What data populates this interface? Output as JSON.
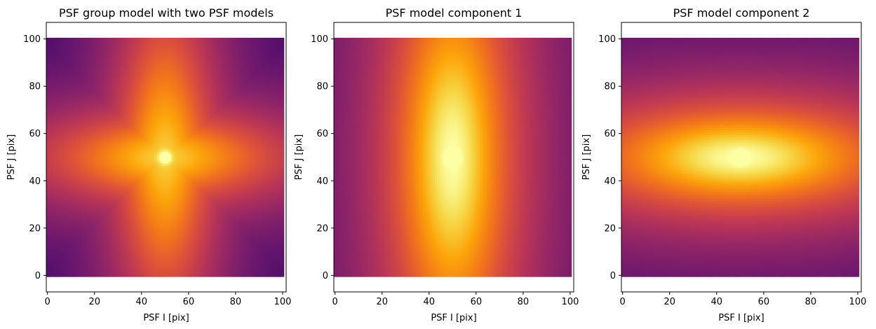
{
  "chart_data": [
    {
      "type": "heatmap",
      "title": "PSF group model with two PSF models",
      "xlabel": "PSF I [pix]",
      "ylabel": "PSF J [pix]",
      "xlim": [
        -0.5,
        101.5
      ],
      "ylim": [
        -7,
        107
      ],
      "image_extent": {
        "x": [
          -0.5,
          100.5
        ],
        "y": [
          -0.5,
          100.5
        ]
      },
      "xticks": [
        0,
        20,
        40,
        60,
        80,
        100
      ],
      "yticks": [
        0,
        20,
        40,
        60,
        80,
        100
      ],
      "colormap": "inferno",
      "peak": {
        "x": 50,
        "y": 50
      },
      "grid": false
    },
    {
      "type": "heatmap",
      "title": "PSF model component 1",
      "xlabel": "PSF I [pix]",
      "ylabel": "PSF J [pix]",
      "xlim": [
        -0.5,
        101.5
      ],
      "ylim": [
        -7,
        107
      ],
      "image_extent": {
        "x": [
          -0.5,
          100.5
        ],
        "y": [
          -0.5,
          100.5
        ]
      },
      "xticks": [
        0,
        20,
        40,
        60,
        80,
        100
      ],
      "yticks": [
        0,
        20,
        40,
        60,
        80,
        100
      ],
      "colormap": "inferno",
      "peak": {
        "x": 50,
        "y": 50
      },
      "elongation": "vertical",
      "grid": false
    },
    {
      "type": "heatmap",
      "title": "PSF model component 2",
      "xlabel": "PSF I [pix]",
      "ylabel": "PSF J [pix]",
      "xlim": [
        -0.5,
        101.5
      ],
      "ylim": [
        -7,
        107
      ],
      "image_extent": {
        "x": [
          -0.5,
          100.5
        ],
        "y": [
          -0.5,
          100.5
        ]
      },
      "xticks": [
        0,
        20,
        40,
        60,
        80,
        100
      ],
      "yticks": [
        0,
        20,
        40,
        60,
        80,
        100
      ],
      "colormap": "inferno",
      "peak": {
        "x": 50,
        "y": 50
      },
      "elongation": "horizontal",
      "grid": false
    }
  ],
  "colors": {
    "axes": "#000000",
    "background": "#ffffff"
  }
}
